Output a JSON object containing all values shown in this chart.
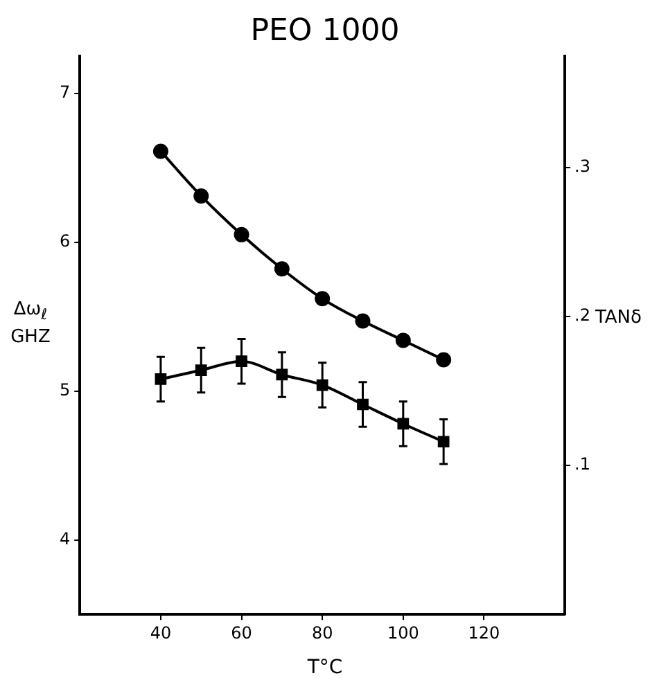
{
  "chart_data": {
    "type": "line",
    "title": "PEO 1000",
    "xlabel": "T°C",
    "ylabel": "Δω$_{ℓ}$ GHZ",
    "y2label": "TANδ",
    "x": [
      40,
      50,
      60,
      70,
      80,
      90,
      100,
      110
    ],
    "series": [
      {
        "color": "#000000",
        "marker": "circle",
        "values": [
          6.61,
          6.31,
          6.05,
          5.82,
          5.62,
          5.47,
          5.34,
          5.21
        ]
      },
      {
        "color": "#000000",
        "marker": "square",
        "axis": "y2",
        "values": [
          0.158,
          0.164,
          0.17,
          0.161,
          0.154,
          0.141,
          0.128,
          0.116
        ],
        "errors": [
          0.015,
          0.015,
          0.015,
          0.015,
          0.015,
          0.015,
          0.015,
          0.015
        ]
      }
    ],
    "xlim": [
      20,
      140
    ],
    "xticks": [
      40,
      60,
      80,
      100,
      120
    ],
    "ylim": [
      3.5,
      7.25
    ],
    "yticks": [
      4,
      5,
      6,
      7
    ],
    "y2lim": [
      0,
      0.375
    ],
    "y2ticks": [
      {
        "value": 0.1,
        "label": ".1"
      },
      {
        "value": 0.2,
        "label": ".2"
      },
      {
        "value": 0.3,
        "label": ".3"
      }
    ],
    "grid": false,
    "legend": false
  }
}
